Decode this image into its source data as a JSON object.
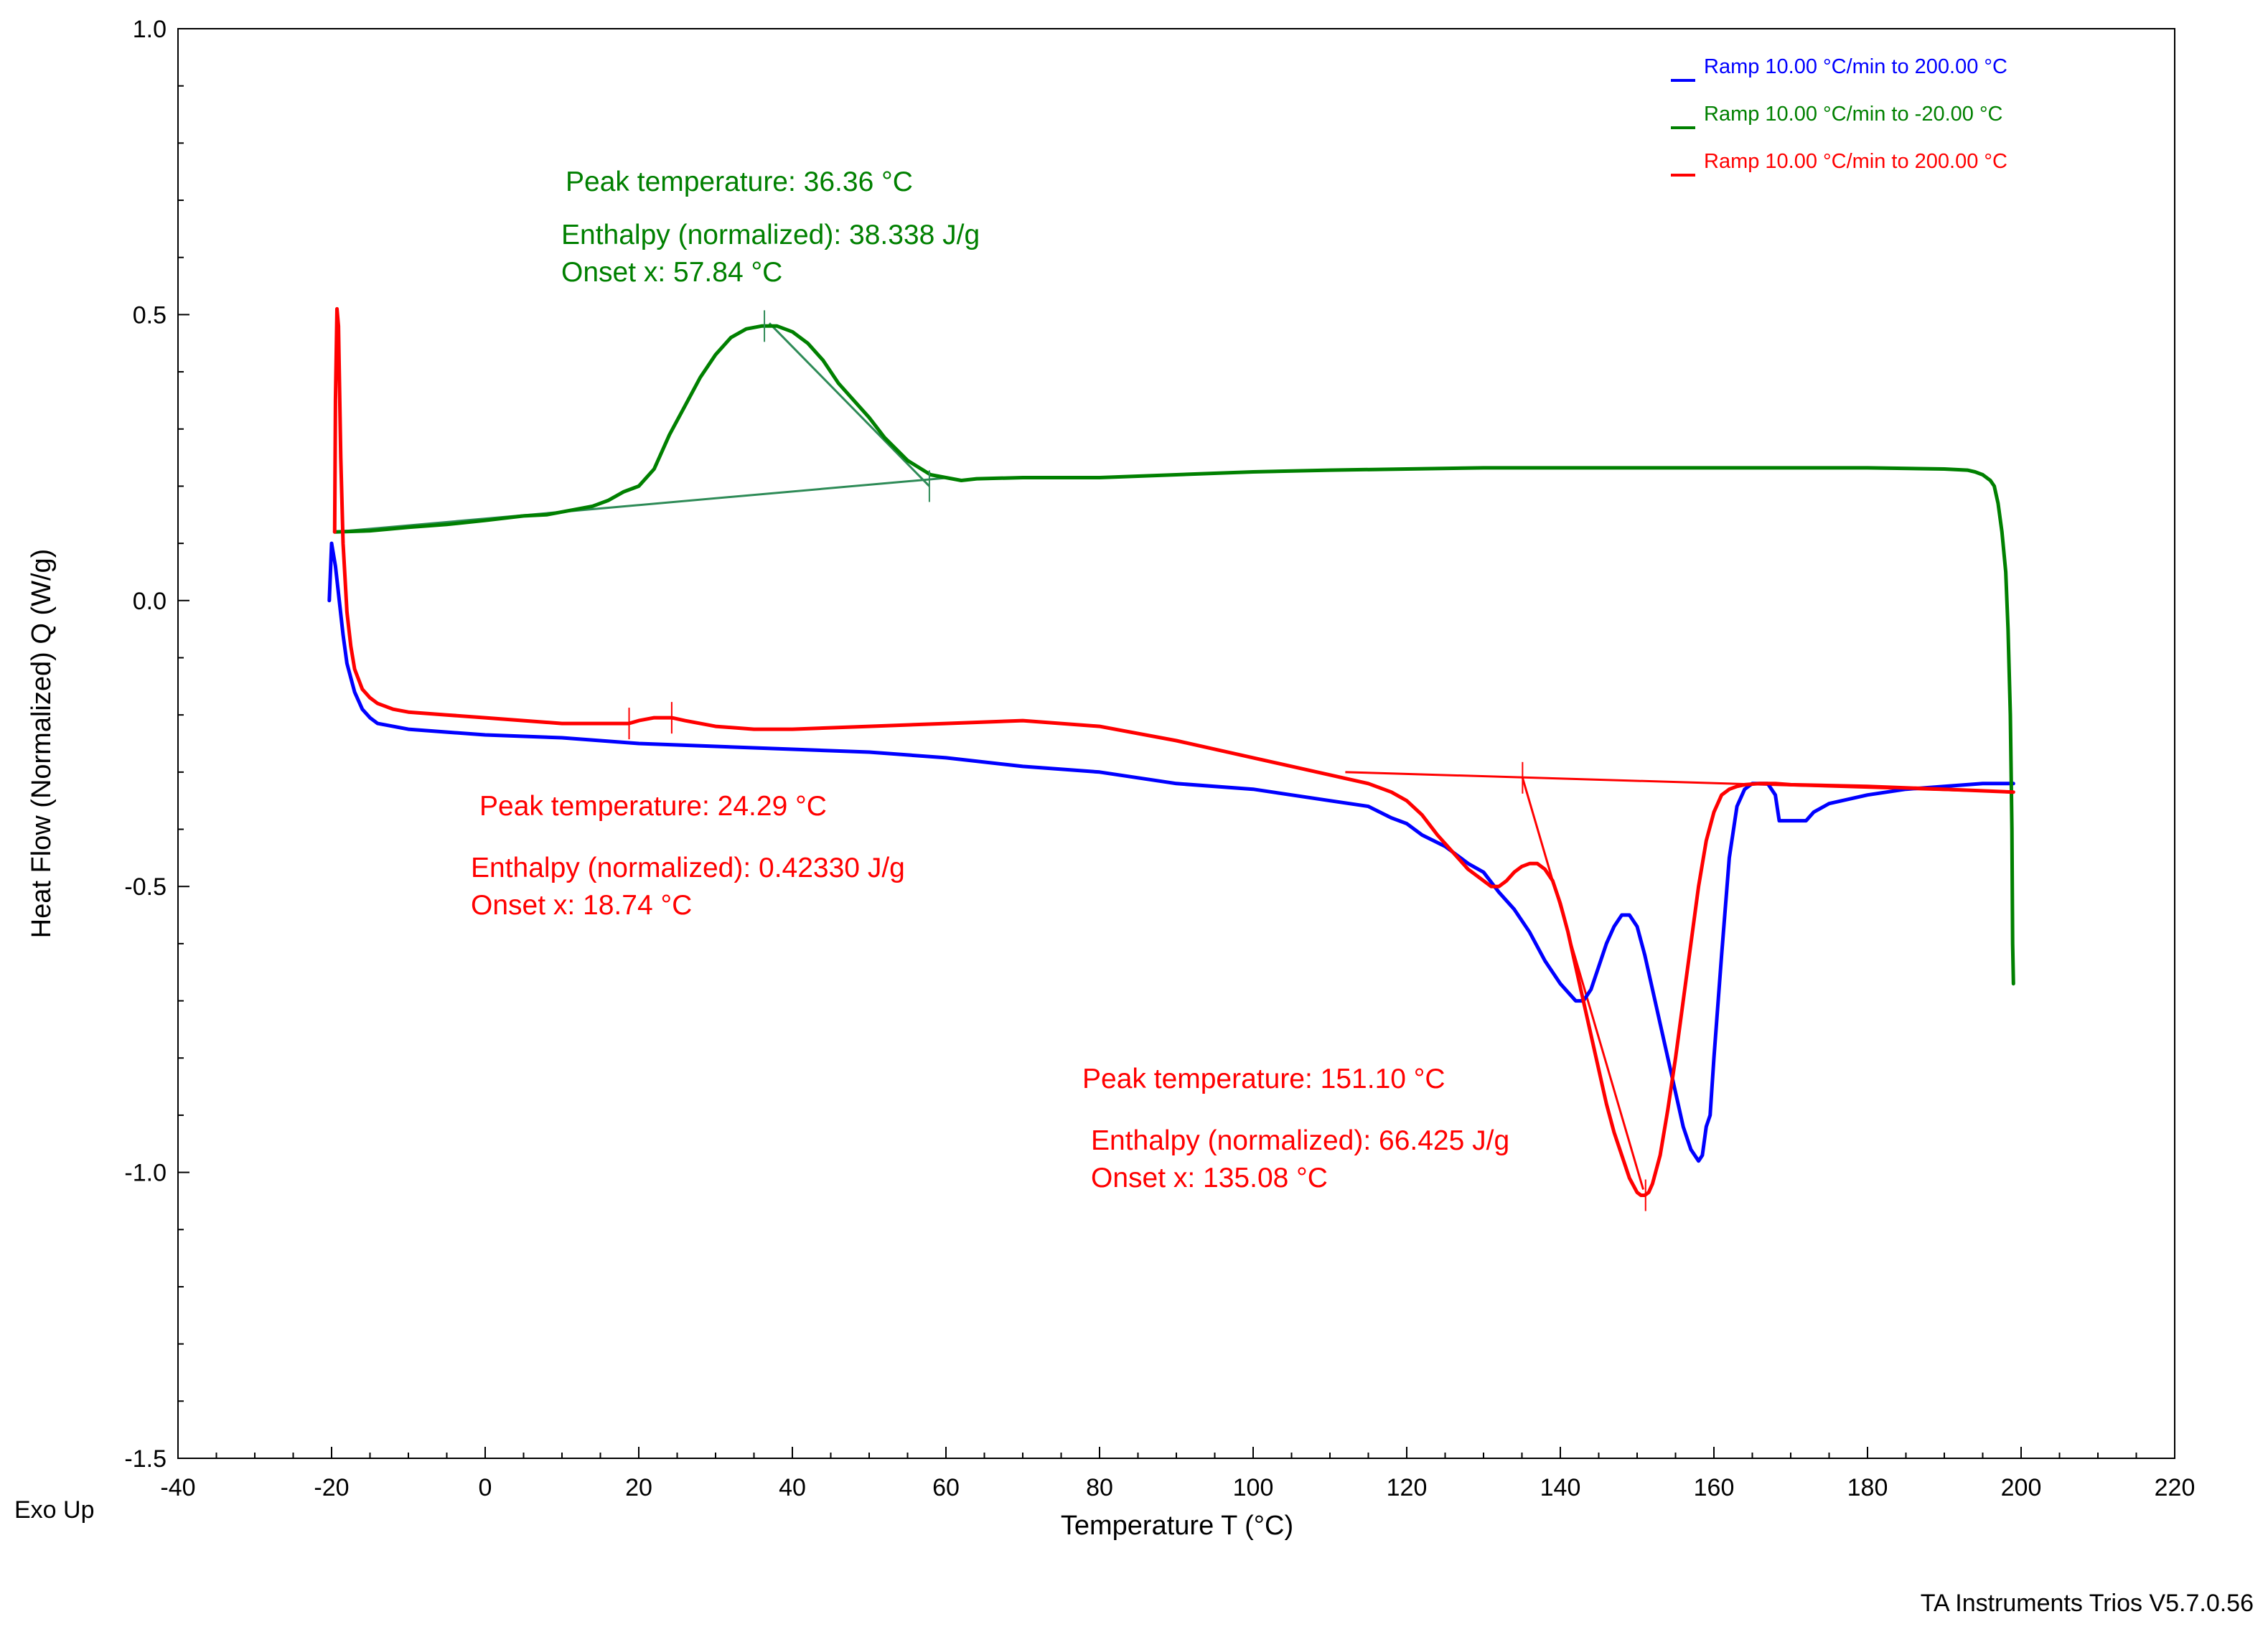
{
  "chart_data": {
    "type": "line",
    "xlabel": "Temperature  T (°C)",
    "ylabel": "Heat Flow (Normalized)  Q (W/g)",
    "xlim": [
      -40,
      220
    ],
    "ylim": [
      -1.5,
      1.0
    ],
    "x_ticks": [
      -40,
      -20,
      0,
      20,
      40,
      60,
      80,
      100,
      120,
      140,
      160,
      180,
      200,
      220
    ],
    "y_ticks": [
      -1.5,
      -1.0,
      -0.5,
      0.0,
      0.5,
      1.0
    ],
    "y_tick_labels": [
      "-1.5",
      "-1.0",
      "-0.5",
      "0.0",
      "0.5",
      "1.0"
    ],
    "legend_position": "top-right",
    "grid": false,
    "series": [
      {
        "name": "Ramp 10.00 °C/min to 200.00 °C",
        "color": "#0000ff",
        "x": [
          -20.3,
          -20,
          -19.5,
          -19,
          -18.5,
          -18,
          -17,
          -16,
          -15,
          -14,
          -12,
          -10,
          -5,
          0,
          10,
          20,
          30,
          40,
          50,
          60,
          70,
          80,
          90,
          100,
          110,
          115,
          118,
          120,
          122,
          125,
          128,
          130,
          132,
          134,
          136,
          138,
          140,
          142,
          143,
          144,
          145,
          146,
          147,
          148,
          149,
          150,
          151,
          152,
          153,
          154,
          155,
          156,
          157,
          158,
          158.5,
          159,
          159.5,
          160,
          161,
          162,
          163,
          164,
          165,
          166,
          167,
          168,
          168.5,
          169,
          170,
          171,
          172,
          173,
          175,
          180,
          185,
          190,
          195,
          199
        ],
        "y": [
          0.0,
          0.1,
          0.06,
          0.0,
          -0.06,
          -0.11,
          -0.16,
          -0.19,
          -0.205,
          -0.215,
          -0.22,
          -0.225,
          -0.23,
          -0.235,
          -0.24,
          -0.25,
          -0.255,
          -0.26,
          -0.265,
          -0.275,
          -0.29,
          -0.3,
          -0.32,
          -0.33,
          -0.35,
          -0.36,
          -0.38,
          -0.39,
          -0.41,
          -0.43,
          -0.46,
          -0.475,
          -0.51,
          -0.54,
          -0.58,
          -0.63,
          -0.67,
          -0.7,
          -0.7,
          -0.68,
          -0.64,
          -0.6,
          -0.57,
          -0.55,
          -0.55,
          -0.57,
          -0.62,
          -0.68,
          -0.74,
          -0.8,
          -0.86,
          -0.92,
          -0.96,
          -0.98,
          -0.97,
          -0.92,
          -0.9,
          -0.8,
          -0.62,
          -0.45,
          -0.36,
          -0.33,
          -0.32,
          -0.32,
          -0.32,
          -0.34,
          -0.385,
          -0.385,
          -0.385,
          -0.385,
          -0.385,
          -0.37,
          -0.355,
          -0.34,
          -0.33,
          -0.325,
          -0.32,
          -0.32
        ]
      },
      {
        "name": "Ramp 10.00 °C/min to -20.00 °C",
        "color": "#008000",
        "x": [
          199,
          198.9,
          198.8,
          198.6,
          198.3,
          198,
          197.5,
          197,
          196.5,
          196,
          195,
          194,
          193,
          190,
          180,
          170,
          160,
          150,
          140,
          130,
          120,
          110,
          100,
          90,
          80,
          70,
          64,
          62,
          60,
          58,
          55,
          52,
          50,
          48,
          46,
          44,
          42,
          40,
          38,
          36,
          34,
          32,
          30,
          28,
          26,
          24,
          22,
          20,
          18,
          16,
          14,
          12,
          10,
          8,
          5,
          0,
          -5,
          -10,
          -15,
          -19.6
        ],
        "y": [
          -0.67,
          -0.6,
          -0.4,
          -0.2,
          -0.05,
          0.05,
          0.12,
          0.17,
          0.2,
          0.21,
          0.22,
          0.225,
          0.228,
          0.23,
          0.232,
          0.232,
          0.232,
          0.232,
          0.232,
          0.232,
          0.23,
          0.228,
          0.225,
          0.22,
          0.215,
          0.215,
          0.213,
          0.21,
          0.215,
          0.22,
          0.245,
          0.285,
          0.32,
          0.35,
          0.38,
          0.42,
          0.45,
          0.47,
          0.48,
          0.48,
          0.475,
          0.46,
          0.43,
          0.39,
          0.34,
          0.29,
          0.23,
          0.2,
          0.19,
          0.175,
          0.165,
          0.16,
          0.155,
          0.15,
          0.148,
          0.14,
          0.133,
          0.128,
          0.122,
          0.12
        ]
      },
      {
        "name": "Ramp 10.00 °C/min to 200.00 °C",
        "color": "#ff0000",
        "x": [
          -19.6,
          -19.5,
          -19.3,
          -19.1,
          -19,
          -18.8,
          -18.5,
          -18,
          -17.5,
          -17,
          -16,
          -15,
          -14,
          -13,
          -12,
          -10,
          -5,
          0,
          5,
          10,
          15,
          18.7,
          20,
          22,
          24.3,
          26,
          28,
          30,
          35,
          40,
          50,
          60,
          70,
          80,
          90,
          100,
          110,
          115,
          118,
          120,
          122,
          124,
          126,
          128,
          130,
          131,
          132,
          133,
          134,
          135,
          136,
          137,
          138,
          139,
          140,
          141,
          142,
          143,
          144,
          145,
          146,
          147,
          148,
          149,
          150,
          150.5,
          151,
          151.5,
          152,
          153,
          154,
          155,
          156,
          157,
          158,
          159,
          160,
          161,
          162,
          163,
          164,
          166,
          168,
          170,
          180,
          190,
          199
        ],
        "y": [
          0.12,
          0.35,
          0.51,
          0.48,
          0.4,
          0.25,
          0.1,
          -0.02,
          -0.08,
          -0.12,
          -0.155,
          -0.17,
          -0.18,
          -0.185,
          -0.19,
          -0.195,
          -0.2,
          -0.205,
          -0.21,
          -0.215,
          -0.215,
          -0.215,
          -0.21,
          -0.205,
          -0.205,
          -0.21,
          -0.215,
          -0.22,
          -0.225,
          -0.225,
          -0.22,
          -0.215,
          -0.21,
          -0.22,
          -0.245,
          -0.275,
          -0.305,
          -0.32,
          -0.335,
          -0.35,
          -0.375,
          -0.41,
          -0.44,
          -0.47,
          -0.49,
          -0.5,
          -0.5,
          -0.49,
          -0.475,
          -0.465,
          -0.46,
          -0.46,
          -0.47,
          -0.49,
          -0.53,
          -0.58,
          -0.64,
          -0.7,
          -0.76,
          -0.82,
          -0.88,
          -0.93,
          -0.97,
          -1.01,
          -1.035,
          -1.04,
          -1.04,
          -1.035,
          -1.02,
          -0.97,
          -0.89,
          -0.8,
          -0.7,
          -0.6,
          -0.5,
          -0.42,
          -0.37,
          -0.34,
          -0.33,
          -0.325,
          -0.322,
          -0.32,
          -0.32,
          -0.322,
          -0.325,
          -0.33,
          -0.335
        ]
      }
    ],
    "construction_lines": [
      {
        "color": "#2e8b57",
        "x": [
          -19.6,
          60.5
        ],
        "y": [
          0.12,
          0.215
        ]
      },
      {
        "color": "#2e8b57",
        "x": [
          37,
          57.84
        ],
        "y": [
          0.485,
          0.2
        ]
      },
      {
        "color": "#ff0000",
        "x": [
          112,
          199
        ],
        "y": [
          -0.3,
          -0.335
        ]
      },
      {
        "color": "#ff0000",
        "x": [
          135.08,
          150.8
        ],
        "y": [
          -0.31,
          -1.03
        ]
      }
    ],
    "markers": [
      {
        "color": "#2e8b57",
        "x": 36.36,
        "y": 0.48
      },
      {
        "color": "#2e8b57",
        "x": 57.84,
        "y": 0.2
      },
      {
        "color": "#ff0000",
        "x": 18.74,
        "y": -0.215
      },
      {
        "color": "#ff0000",
        "x": 24.29,
        "y": -0.205
      },
      {
        "color": "#ff0000",
        "x": 135.08,
        "y": -0.31
      },
      {
        "color": "#ff0000",
        "x": 151.1,
        "y": -1.04
      }
    ],
    "annotations": [
      {
        "color": "#008000",
        "lines": [
          "Peak temperature: 36.36 °C",
          "Enthalpy (normalized): 38.338 J/g",
          "Onset x: 57.84 °C"
        ]
      },
      {
        "color": "#ff0000",
        "lines": [
          "Peak temperature: 24.29 °C",
          "Enthalpy (normalized): 0.42330 J/g",
          "Onset x: 18.74 °C"
        ]
      },
      {
        "color": "#ff0000",
        "lines": [
          "Peak temperature: 151.10 °C",
          "Enthalpy (normalized): 66.425 J/g",
          "Onset x: 135.08 °C"
        ]
      }
    ]
  },
  "footer": {
    "exo_label": "Exo Up",
    "software": "TA Instruments Trios V5.7.0.56"
  }
}
